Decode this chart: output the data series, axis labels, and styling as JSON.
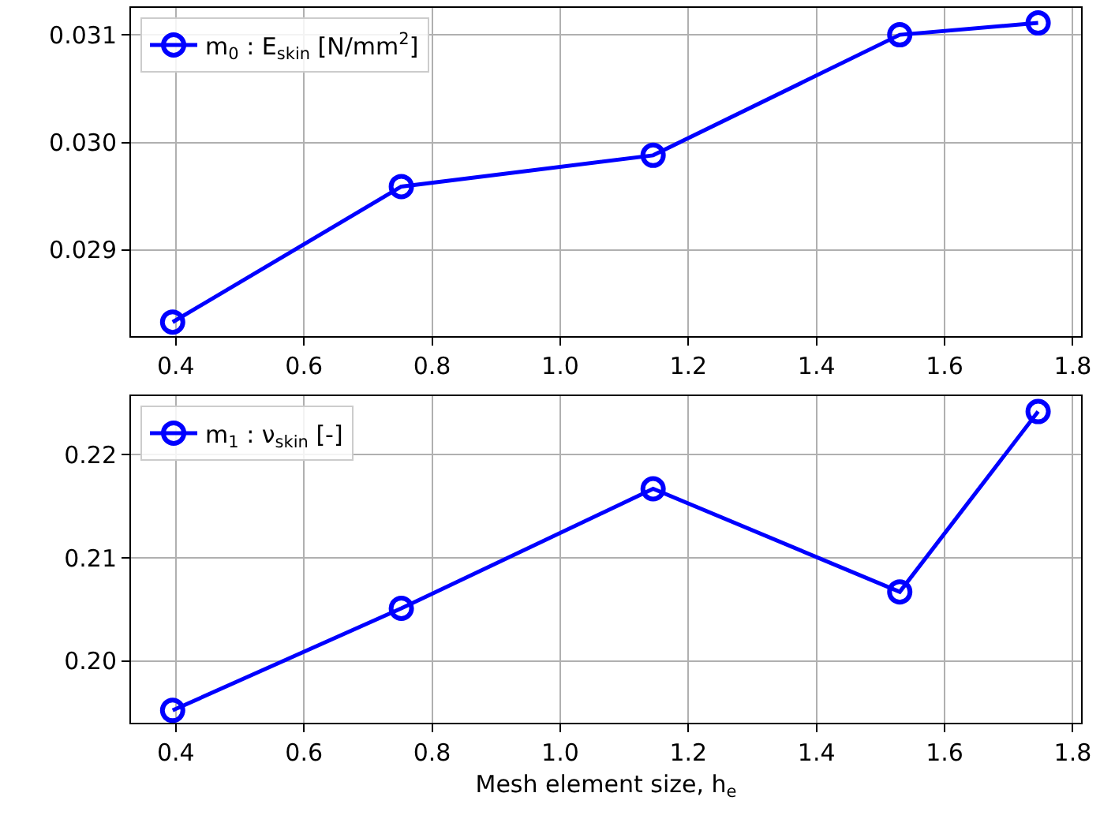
{
  "chart_data": [
    {
      "type": "line",
      "x": [
        0.395,
        0.752,
        1.145,
        1.53,
        1.746
      ],
      "series": [
        {
          "name": "m$_{0}$ : E$_{skin}$ [N/mm$^{2}$]",
          "color": "#0000ff",
          "values": [
            0.02833,
            0.02959,
            0.02988,
            0.031,
            0.03111
          ]
        }
      ],
      "xlim": [
        0.33,
        1.813
      ],
      "xticks": [
        0.4,
        0.6,
        0.8,
        {
          "value": 1.0,
          "label": "1.0"
        },
        1.2,
        1.4,
        1.6,
        1.8
      ],
      "ylim": [
        0.0282,
        0.03125
      ],
      "yticks": [
        0.029,
        {
          "value": 0.03,
          "label": "0.030"
        },
        0.031
      ],
      "grid": true,
      "legend": "top left",
      "marker": "circle",
      "line_style": "solid"
    },
    {
      "type": "line",
      "x": [
        0.395,
        0.752,
        1.145,
        1.53,
        1.746
      ],
      "xlabel": "Mesh element size, h$_{e}$",
      "series": [
        {
          "name": "m$_{1}$ : ν$_{skin}$ [-]",
          "color": "#0000ff",
          "values": [
            0.1952,
            0.2051,
            0.2167,
            0.2067,
            0.2242
          ]
        }
      ],
      "xlim": [
        0.33,
        1.813
      ],
      "xticks": [
        0.4,
        0.6,
        0.8,
        {
          "value": 1.0,
          "label": "1.0"
        },
        1.2,
        1.4,
        1.6,
        1.8
      ],
      "ylim": [
        0.194,
        0.2257
      ],
      "yticks": [
        {
          "value": 0.2,
          "label": "0.20"
        },
        0.21,
        {
          "value": 0.22,
          "label": "0.22"
        }
      ],
      "grid": true,
      "legend": "top left",
      "marker": "circle",
      "line_style": "solid"
    }
  ]
}
